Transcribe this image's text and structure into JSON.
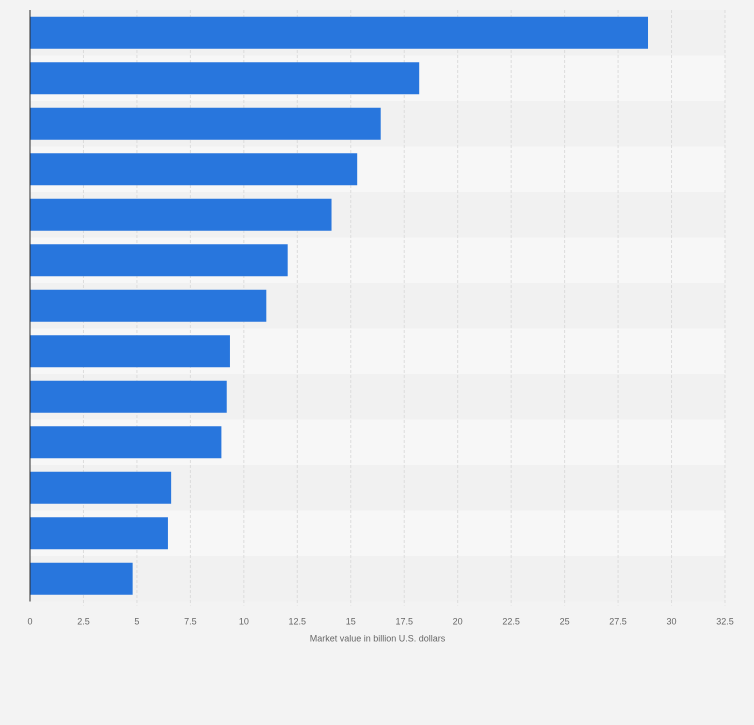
{
  "colors": {
    "page_background": "#f3f3f3",
    "band_light": "#f7f7f7",
    "band_dark": "#f1f1f1",
    "bar": "#2876dd",
    "gridline": "#dcdcdc",
    "axis_line": "#2b2b2b",
    "tick_label": "#666666"
  },
  "chart_data": {
    "type": "bar",
    "orientation": "horizontal",
    "categories": [
      "",
      "",
      "",
      "",
      "",
      "",
      "",
      "",
      "",
      "",
      "",
      "",
      ""
    ],
    "values": [
      28.9,
      18.2,
      16.4,
      15.3,
      14.1,
      12.05,
      11.05,
      9.35,
      9.2,
      8.95,
      6.6,
      6.45,
      4.8
    ],
    "title": "",
    "xlabel": "Market value in billion U.S. dollars",
    "ylabel": "",
    "xlim": [
      0,
      32.5
    ],
    "x_ticks": [
      0,
      2.5,
      5,
      7.5,
      10,
      12.5,
      15,
      17.5,
      20,
      22.5,
      25,
      27.5,
      30,
      32.5
    ],
    "x_tick_labels": [
      "0",
      "2.5",
      "5",
      "7.5",
      "10",
      "12.5",
      "15",
      "17.5",
      "20",
      "22.5",
      "25",
      "27.5",
      "30",
      "32.5"
    ],
    "grid": "vertical dashed",
    "legend": "none"
  }
}
